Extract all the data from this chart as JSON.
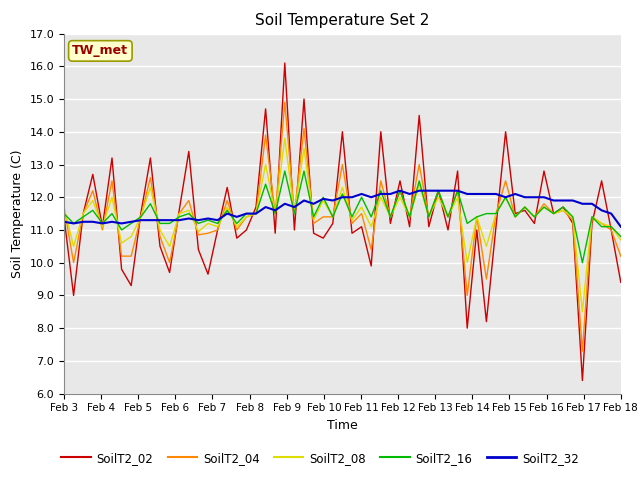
{
  "title": "Soil Temperature Set 2",
  "xlabel": "Time",
  "ylabel": "Soil Temperature (C)",
  "annotation": "TW_met",
  "ylim": [
    6.0,
    17.0
  ],
  "yticks": [
    6.0,
    7.0,
    8.0,
    9.0,
    10.0,
    11.0,
    12.0,
    13.0,
    14.0,
    15.0,
    16.0,
    17.0
  ],
  "xtick_labels": [
    "Feb 3",
    "Feb 4",
    "Feb 5",
    "Feb 6",
    "Feb 7",
    "Feb 8",
    "Feb 9",
    "Feb 10",
    "Feb 11",
    "Feb 12",
    "Feb 13",
    "Feb 14",
    "Feb 15",
    "Feb 16",
    "Feb 17",
    "Feb 18"
  ],
  "series_names": [
    "SoilT2_02",
    "SoilT2_04",
    "SoilT2_08",
    "SoilT2_16",
    "SoilT2_32"
  ],
  "series_colors": [
    "#cc0000",
    "#ff8800",
    "#dddd00",
    "#00bb00",
    "#0000cc"
  ],
  "series_linewidths": [
    1.0,
    1.0,
    1.0,
    1.0,
    1.5
  ],
  "background_color": "#e8e8e8",
  "SoilT2_02": [
    11.4,
    9.0,
    11.5,
    12.7,
    11.1,
    13.2,
    9.8,
    9.3,
    11.5,
    13.2,
    10.5,
    9.7,
    11.6,
    13.4,
    10.4,
    9.65,
    11.0,
    12.3,
    10.75,
    11.0,
    11.7,
    14.7,
    10.9,
    16.1,
    11.0,
    15.0,
    10.9,
    10.75,
    11.2,
    14.0,
    10.9,
    11.1,
    9.9,
    14.0,
    11.2,
    12.5,
    11.1,
    14.5,
    11.1,
    12.2,
    11.0,
    12.8,
    8.0,
    11.0,
    8.2,
    11.1,
    14.0,
    11.5,
    11.6,
    11.2,
    12.8,
    11.5,
    11.7,
    11.2,
    6.4,
    11.2,
    12.5,
    11.0,
    9.4
  ],
  "SoilT2_04": [
    11.7,
    10.0,
    11.5,
    12.2,
    11.0,
    12.5,
    10.2,
    10.2,
    11.4,
    12.6,
    10.8,
    10.0,
    11.5,
    11.9,
    10.85,
    10.9,
    11.0,
    11.9,
    11.0,
    11.4,
    11.5,
    13.9,
    11.5,
    14.9,
    11.5,
    14.1,
    11.2,
    11.4,
    11.4,
    13.0,
    11.2,
    11.5,
    10.4,
    12.5,
    11.4,
    12.2,
    11.4,
    13.0,
    11.4,
    12.2,
    11.4,
    12.2,
    9.0,
    11.4,
    9.5,
    11.5,
    12.5,
    11.4,
    11.7,
    11.4,
    11.8,
    11.5,
    11.6,
    11.3,
    7.3,
    11.4,
    11.2,
    11.0,
    10.2
  ],
  "SoilT2_08": [
    11.7,
    10.5,
    11.5,
    11.9,
    11.1,
    12.0,
    10.6,
    10.8,
    11.4,
    12.3,
    11.0,
    10.5,
    11.5,
    11.6,
    10.95,
    11.2,
    11.1,
    11.7,
    11.1,
    11.4,
    11.5,
    13.0,
    11.5,
    13.8,
    11.5,
    13.5,
    11.3,
    11.9,
    11.4,
    12.3,
    11.3,
    11.7,
    11.1,
    12.0,
    11.4,
    12.0,
    11.4,
    12.4,
    11.4,
    12.0,
    11.4,
    12.0,
    10.0,
    11.4,
    10.5,
    11.5,
    12.0,
    11.4,
    11.7,
    11.4,
    11.7,
    11.5,
    11.6,
    11.4,
    8.5,
    11.4,
    11.2,
    11.1,
    10.7
  ],
  "SoilT2_16": [
    11.5,
    11.2,
    11.4,
    11.6,
    11.2,
    11.5,
    11.0,
    11.2,
    11.4,
    11.8,
    11.2,
    11.2,
    11.4,
    11.5,
    11.2,
    11.3,
    11.2,
    11.6,
    11.2,
    11.5,
    11.5,
    12.4,
    11.5,
    12.8,
    11.5,
    12.8,
    11.4,
    12.0,
    11.4,
    12.1,
    11.4,
    12.0,
    11.4,
    12.2,
    11.4,
    12.2,
    11.4,
    12.5,
    11.4,
    12.2,
    11.4,
    12.2,
    11.2,
    11.4,
    11.5,
    11.5,
    12.0,
    11.4,
    11.7,
    11.4,
    11.7,
    11.5,
    11.7,
    11.4,
    10.0,
    11.4,
    11.1,
    11.1,
    10.8
  ],
  "SoilT2_32": [
    11.25,
    11.2,
    11.25,
    11.25,
    11.2,
    11.25,
    11.2,
    11.25,
    11.3,
    11.3,
    11.3,
    11.3,
    11.3,
    11.35,
    11.3,
    11.35,
    11.3,
    11.5,
    11.4,
    11.5,
    11.5,
    11.7,
    11.6,
    11.8,
    11.7,
    11.9,
    11.8,
    11.95,
    11.9,
    12.0,
    12.0,
    12.1,
    12.0,
    12.1,
    12.1,
    12.2,
    12.1,
    12.2,
    12.2,
    12.2,
    12.2,
    12.2,
    12.1,
    12.1,
    12.1,
    12.1,
    12.0,
    12.1,
    12.0,
    12.0,
    12.0,
    11.9,
    11.9,
    11.9,
    11.8,
    11.8,
    11.6,
    11.5,
    11.1
  ]
}
